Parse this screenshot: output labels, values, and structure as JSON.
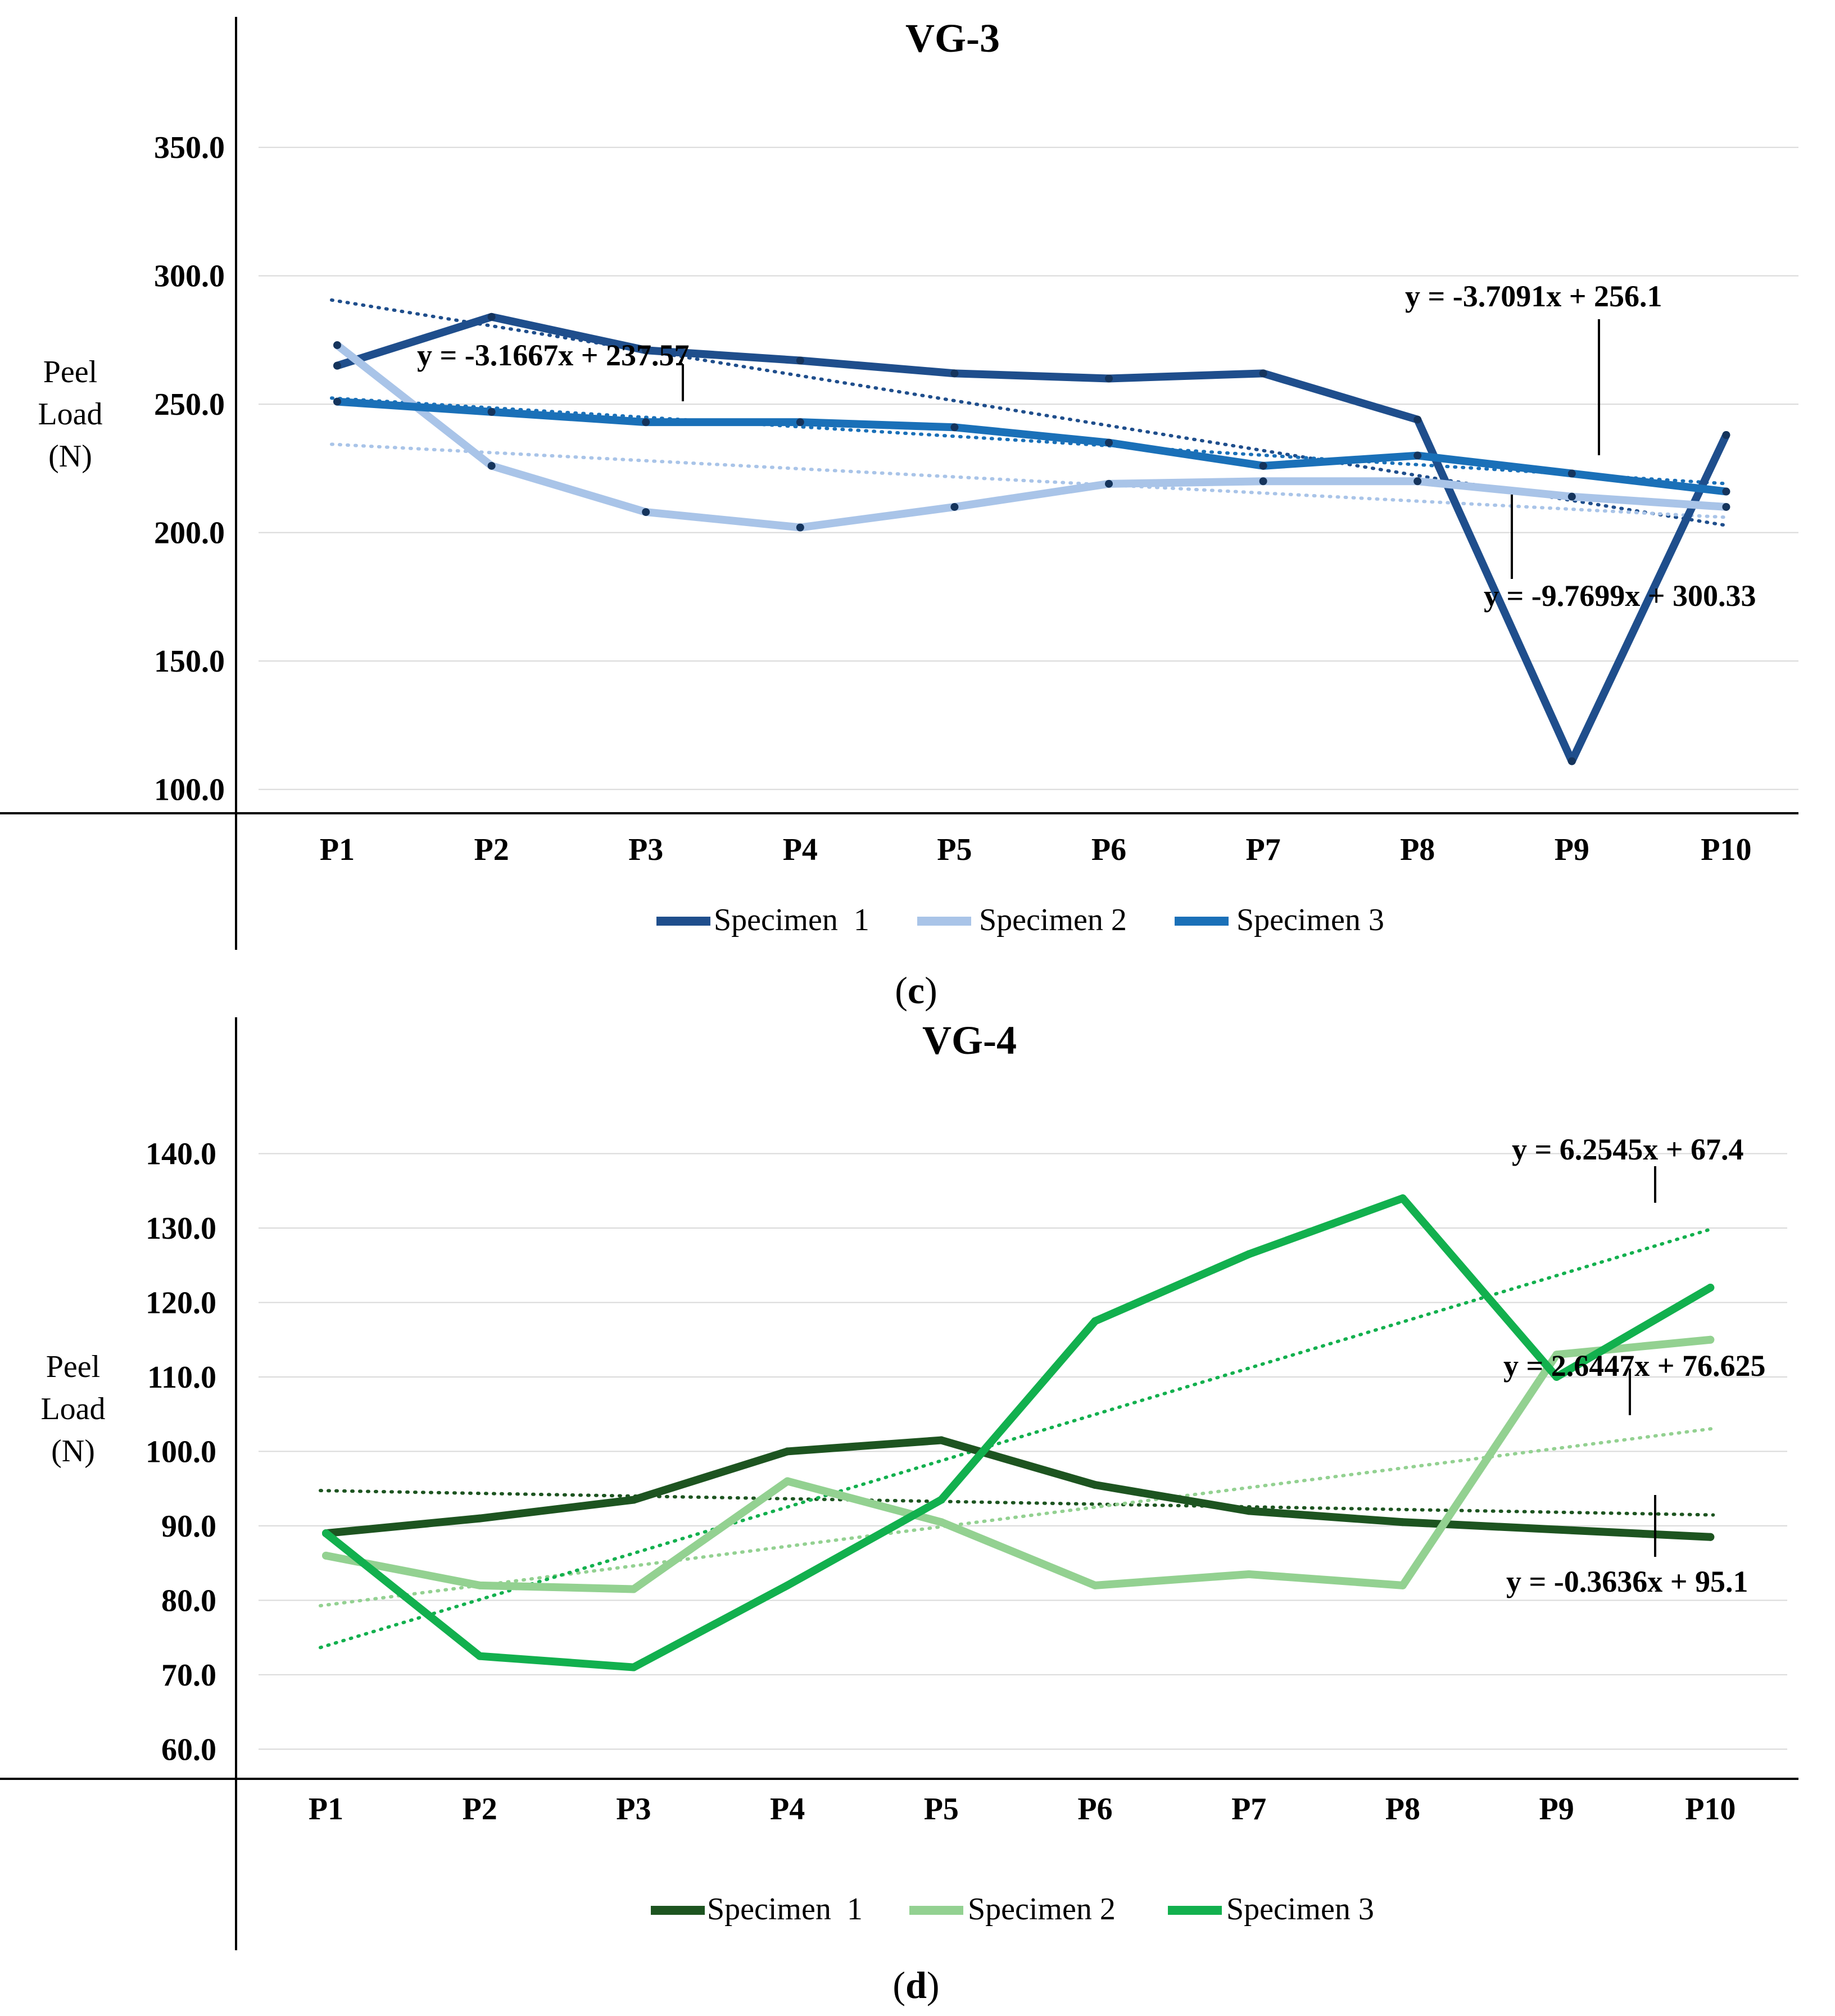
{
  "chart_data": [
    {
      "type": "line",
      "title": "VG-3",
      "ylabel": "Peel Load (N)",
      "ylabel_lines": [
        "Peel",
        "Load",
        "(N)"
      ],
      "xlabel": "",
      "categories": [
        "P1",
        "P2",
        "P3",
        "P4",
        "P5",
        "P6",
        "P7",
        "P8",
        "P9",
        "P10"
      ],
      "yticks": [
        "100.0",
        "150.0",
        "200.0",
        "250.0",
        "300.0",
        "350.0"
      ],
      "ylim": [
        94,
        375
      ],
      "grid": true,
      "legend_position": "bottom",
      "series": [
        {
          "name": "Specimen  1",
          "color": "#1f4e8c",
          "values": [
            265,
            284,
            271,
            267,
            262,
            260,
            262,
            244,
            111,
            238
          ],
          "trendline": {
            "slope": -9.7699,
            "intercept": 300.33,
            "label": "y = -9.7699x + 300.33"
          }
        },
        {
          "name": "Specimen 2",
          "color": "#a9c4e8",
          "values": [
            273,
            226,
            208,
            202,
            210,
            219,
            220,
            220,
            214,
            210
          ],
          "trendline": {
            "slope": -3.1667,
            "intercept": 237.57,
            "label": "y = -3.1667x + 237.57"
          }
        },
        {
          "name": "Specimen 3",
          "color": "#1a70b8",
          "values": [
            251,
            247,
            243,
            243,
            241,
            235,
            226,
            230,
            223,
            216
          ],
          "trendline": {
            "slope": -3.7091,
            "intercept": 256.1,
            "label": "y = -3.7091x + 256.1"
          }
        }
      ],
      "caption": "c"
    },
    {
      "type": "line",
      "title": "VG-4",
      "ylabel": "Peel Load (N)",
      "ylabel_lines": [
        "Peel",
        "Load",
        "(N)"
      ],
      "xlabel": "",
      "categories": [
        "P1",
        "P2",
        "P3",
        "P4",
        "P5",
        "P6",
        "P7",
        "P8",
        "P9",
        "P10"
      ],
      "yticks": [
        "60.0",
        "70.0",
        "80.0",
        "90.0",
        "100.0",
        "110.0",
        "120.0",
        "130.0",
        "140.0"
      ],
      "ylim": [
        57,
        148.5
      ],
      "grid": true,
      "legend_position": "bottom",
      "series": [
        {
          "name": "Specimen  1",
          "color": "#1d5420",
          "values": [
            89,
            91,
            93.5,
            100,
            101.5,
            95.5,
            92,
            90.5,
            89.5,
            88.5
          ],
          "trendline": {
            "slope": -0.3636,
            "intercept": 95.1,
            "label": "y = -0.3636x + 95.1"
          }
        },
        {
          "name": "Specimen 2",
          "color": "#93d191",
          "values": [
            86,
            82,
            81.5,
            96,
            90.5,
            82,
            83.5,
            82,
            113,
            115
          ],
          "trendline": {
            "slope": 2.6447,
            "intercept": 76.625,
            "label": "y = 2.6447x + 76.625"
          }
        },
        {
          "name": "Specimen 3",
          "color": "#12b04e",
          "values": [
            89,
            72.5,
            71,
            82,
            93.5,
            117.5,
            126.5,
            134,
            110,
            122
          ],
          "trendline": {
            "slope": 6.2545,
            "intercept": 67.4,
            "label": "y = 6.2545x + 67.4"
          }
        }
      ],
      "caption": "d"
    }
  ]
}
